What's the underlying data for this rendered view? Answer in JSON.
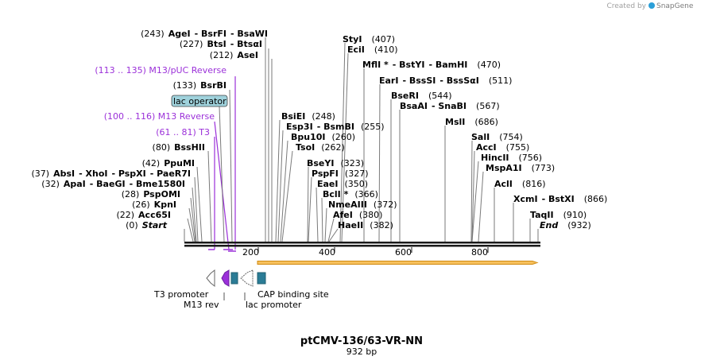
{
  "map": {
    "title": "ptCMV-136/63-VR-NN",
    "size_label": "932 bp",
    "length_bp": 932,
    "credit": {
      "prefix": "Created by",
      "brand": "SnapGene"
    },
    "colors": {
      "backbone": "#1a1a1a",
      "primer": "#9b30d9",
      "orf_fill": "#f7c15e",
      "orf_stroke": "#d08a10",
      "feature_blue": "#2b7c96",
      "lac_operator_fill": "#9fd2dc"
    },
    "ticks": [
      "200",
      "400",
      "600",
      "800"
    ],
    "left_sites": [
      {
        "pos": "(243)",
        "name": "AgeI",
        "sep": "- BsrFI",
        "name3": "- BsaWI"
      },
      {
        "pos": "(227)",
        "name": "BtsI",
        "sep": "- BtsαI"
      },
      {
        "pos": "(212)",
        "name": "AseI"
      },
      {
        "pos": "(133)",
        "name": "BsrBI"
      },
      {
        "pos": "(80)",
        "name": "BssHII"
      },
      {
        "pos": "(42)",
        "name": "PpuMI"
      },
      {
        "pos": "(37)",
        "name": "AbsI",
        "sep": "- XhoI",
        "name3": "- PspXI",
        "name4": "- PaeR7I"
      },
      {
        "pos": "(32)",
        "name": "ApaI",
        "sep": "- BaeGI",
        "name3": "- Bme1580I"
      },
      {
        "pos": "(28)",
        "name": "PspOMI"
      },
      {
        "pos": "(26)",
        "name": "KpnI"
      },
      {
        "pos": "(22)",
        "name": "Acc65I"
      },
      {
        "pos": "(0)",
        "name": "Start"
      }
    ],
    "primers": [
      {
        "label": "(113 .. 135)  M13/pUC Reverse"
      },
      {
        "label": "(100 .. 116)  M13 Reverse"
      },
      {
        "label": "(61 .. 81)  T3"
      }
    ],
    "lac_operator_label": "lac operator",
    "mid_sites": [
      {
        "name": "BsiEI",
        "pos": "(248)"
      },
      {
        "name": "Esp3I",
        "sep": "- BsmBI",
        "pos": "(255)"
      },
      {
        "name": "Bpu10I",
        "pos": "(260)"
      },
      {
        "name": "TsoI",
        "pos": "(262)"
      },
      {
        "name": "BseYI",
        "pos": "(323)"
      },
      {
        "name": "PspFI",
        "pos": "(327)"
      },
      {
        "name": "EaeI",
        "pos": "(350)"
      },
      {
        "name": "BclI *",
        "pos": "(366)"
      },
      {
        "name": "NmeAIII",
        "pos": "(372)"
      },
      {
        "name": "AfeI",
        "pos": "(380)"
      },
      {
        "name": "HaeII",
        "pos": "(382)"
      }
    ],
    "right_sites": [
      {
        "name": "StyI",
        "pos": "(407)"
      },
      {
        "name": "EciI",
        "pos": "(410)"
      },
      {
        "name": "MflI *",
        "sep": "- BstYI",
        "name3": "- BamHI",
        "pos": "(470)"
      },
      {
        "name": "EarI",
        "sep": "- BssSI",
        "name3": "- BssSαI",
        "pos": "(511)"
      },
      {
        "name": "BseRI",
        "pos": "(544)"
      },
      {
        "name": "BsaAI",
        "sep": "- SnaBI",
        "pos": "(567)"
      },
      {
        "name": "MslI",
        "pos": "(686)"
      },
      {
        "name": "SalI",
        "pos": "(754)"
      },
      {
        "name": "AccI",
        "pos": "(755)"
      },
      {
        "name": "HincII",
        "pos": "(756)"
      },
      {
        "name": "MspA1I",
        "pos": "(773)"
      },
      {
        "name": "AclI",
        "pos": "(816)"
      },
      {
        "name": "XcmI",
        "sep": "- BstXI",
        "pos": "(866)"
      },
      {
        "name": "TaqII",
        "pos": "(910)"
      },
      {
        "name": "End",
        "pos": "(932)"
      }
    ],
    "features": [
      {
        "label": "T3 promoter"
      },
      {
        "label": "M13 rev"
      },
      {
        "label": "lac promoter"
      },
      {
        "label": "CAP binding site"
      }
    ]
  }
}
